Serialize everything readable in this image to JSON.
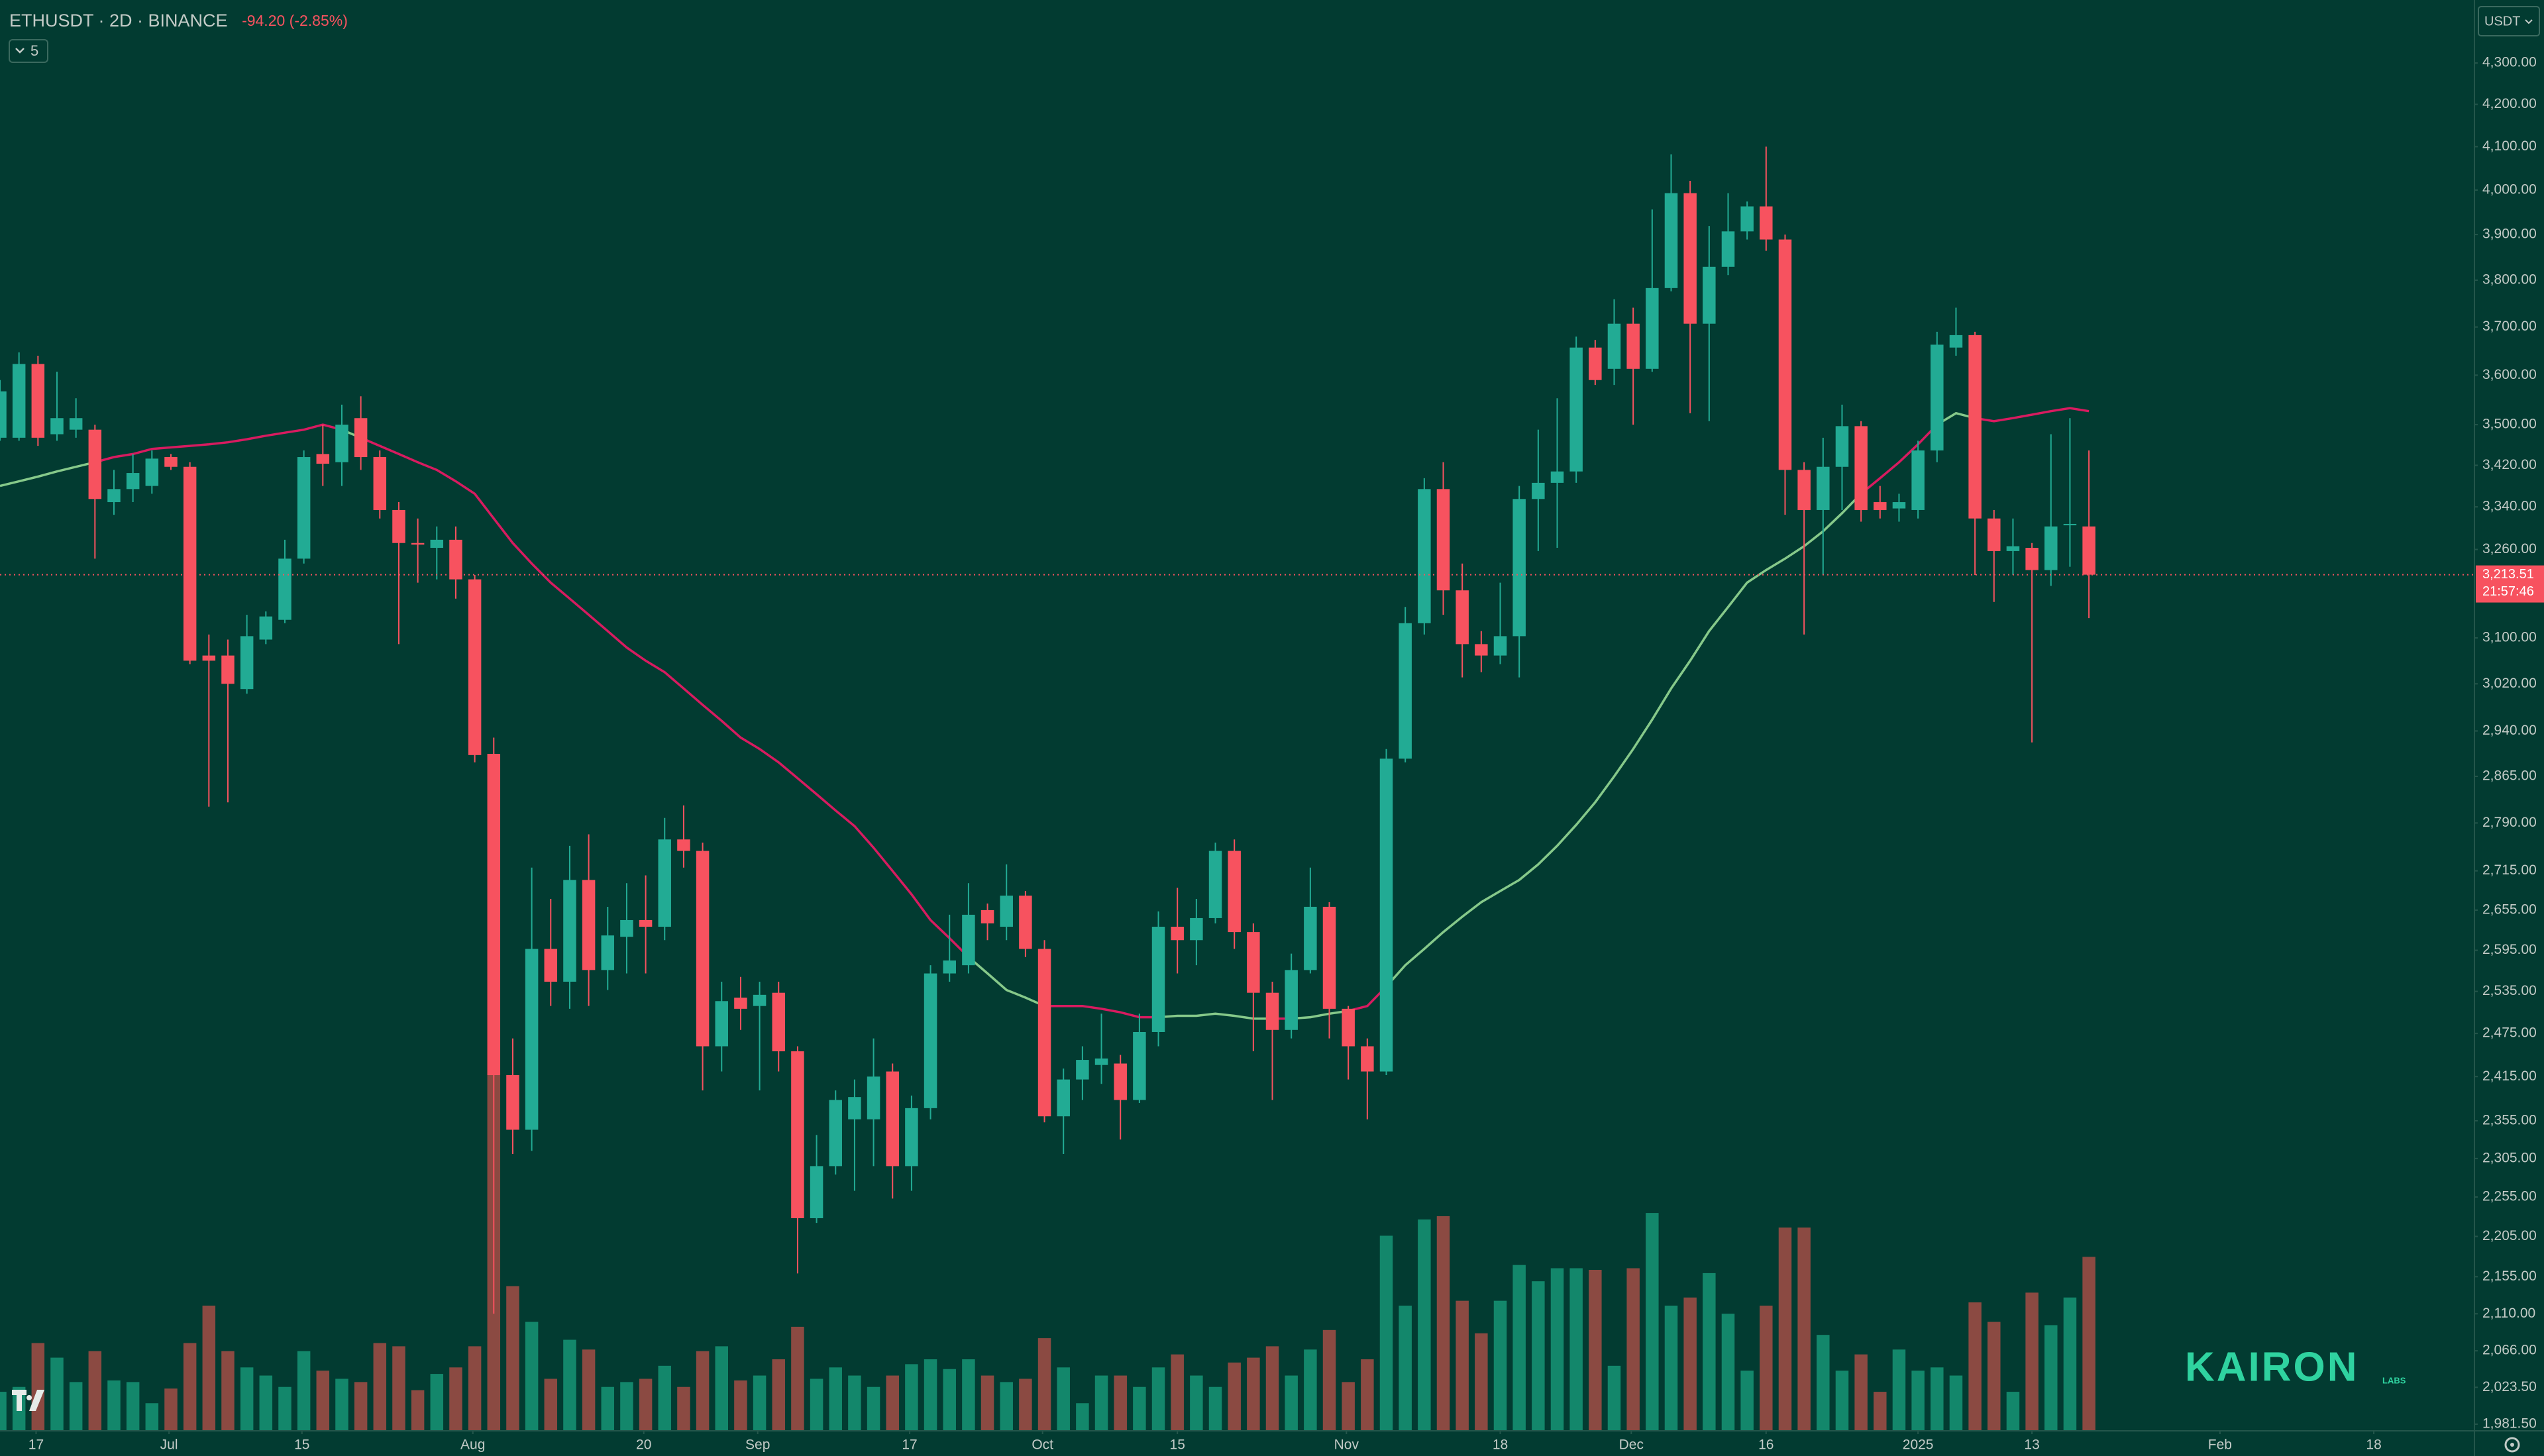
{
  "header": {
    "symbol": "ETHUSDT · 2D · BINANCE",
    "change": "-94.20 (-2.85%)",
    "indicators": "5"
  },
  "currency": "USDT",
  "watermark": {
    "brand": "KAIRON",
    "sub": "LABS"
  },
  "chart_data": {
    "type": "candlestick",
    "open": [
      3474,
      3474,
      3623,
      3481,
      3490,
      3490,
      3349,
      3374,
      3380,
      3436,
      3417,
      3069,
      3069,
      3011,
      3097,
      3132,
      3243,
      3442,
      3426,
      3513,
      3436,
      3334,
      3272,
      3263,
      3278,
      3205,
      2902,
      2417,
      2343,
      2597,
      2549,
      2701,
      2566,
      2615,
      2640,
      2630,
      2764,
      2746,
      2457,
      2526,
      2514,
      2533,
      2450,
      2228,
      2295,
      2357,
      2357,
      2422,
      2295,
      2372,
      2561,
      2573,
      2655,
      2630,
      2677,
      2597,
      2361,
      2411,
      2431,
      2433,
      2383,
      2477,
      2630,
      2610,
      2643,
      2746,
      2622,
      2533,
      2480,
      2566,
      2660,
      2510,
      2457,
      2422,
      2894,
      3126,
      3374,
      3185,
      3089,
      3069,
      3103,
      3355,
      3386,
      3408,
      3657,
      3613,
      3707,
      3613,
      3783,
      3993,
      3707,
      3829,
      3907,
      3963,
      3889,
      3411,
      3334,
      3417,
      3497,
      3349,
      3337,
      3334,
      3449,
      3657,
      3683,
      3318,
      3257,
      3263,
      3222,
      3306,
      3303
    ],
    "high": [
      3590,
      3647,
      3640,
      3607,
      3553,
      3500,
      3411,
      3442,
      3449,
      3442,
      3426,
      3106,
      3097,
      3141,
      3147,
      3278,
      3449,
      3500,
      3540,
      3557,
      3449,
      3349,
      3318,
      3303,
      3303,
      3213,
      2929,
      2468,
      2720,
      2672,
      2754,
      2772,
      2660,
      2696,
      2708,
      2798,
      2818,
      2759,
      2549,
      2556,
      2549,
      2549,
      2457,
      2336,
      2396,
      2411,
      2468,
      2433,
      2389,
      2573,
      2648,
      2696,
      2665,
      2725,
      2684,
      2610,
      2426,
      2457,
      2503,
      2445,
      2503,
      2653,
      2689,
      2672,
      2759,
      2764,
      2635,
      2549,
      2590,
      2720,
      2667,
      2514,
      2468,
      2910,
      3155,
      3395,
      3426,
      3234,
      3112,
      3199,
      3380,
      3490,
      3553,
      3680,
      3673,
      3759,
      3741,
      3956,
      4082,
      4021,
      3919,
      3993,
      3974,
      4100,
      3900,
      3426,
      3474,
      3540,
      3507,
      3380,
      3365,
      3468,
      3690,
      3741,
      3690,
      3334,
      3318,
      3272,
      3481,
      3513,
      3449
    ],
    "low": [
      3468,
      3468,
      3458,
      3468,
      3474,
      3243,
      3325,
      3349,
      3365,
      3411,
      3054,
      2816,
      2823,
      3003,
      3089,
      3126,
      3234,
      3380,
      3380,
      3411,
      3318,
      3089,
      3199,
      3205,
      3170,
      2888,
      2110,
      2311,
      2315,
      2514,
      2510,
      2514,
      2537,
      2561,
      2561,
      2610,
      2720,
      2396,
      2422,
      2480,
      2396,
      2422,
      2159,
      2222,
      2284,
      2263,
      2295,
      2253,
      2263,
      2357,
      2549,
      2561,
      2610,
      2610,
      2585,
      2353,
      2311,
      2383,
      2405,
      2330,
      2379,
      2457,
      2561,
      2573,
      2635,
      2597,
      2450,
      2383,
      2468,
      2561,
      2468,
      2411,
      2357,
      2417,
      2888,
      3106,
      3141,
      3031,
      3040,
      3054,
      3031,
      3257,
      3263,
      3386,
      3580,
      3580,
      3500,
      3607,
      3776,
      3523,
      3507,
      3811,
      3889,
      3864,
      3325,
      3106,
      3213,
      3334,
      3312,
      3318,
      3312,
      3318,
      3426,
      3640,
      3213,
      3164,
      3213,
      2921,
      3193,
      3228,
      3135
    ],
    "close": [
      3567,
      3623,
      3474,
      3513,
      3513,
      3355,
      3374,
      3405,
      3433,
      3417,
      3060,
      3060,
      3020,
      3103,
      3138,
      3243,
      3436,
      3423,
      3500,
      3436,
      3334,
      3272,
      3269,
      3278,
      3205,
      2900,
      2417,
      2343,
      2597,
      2549,
      2701,
      2566,
      2617,
      2640,
      2630,
      2764,
      2746,
      2457,
      2521,
      2510,
      2530,
      2450,
      2228,
      2295,
      2383,
      2387,
      2415,
      2295,
      2372,
      2561,
      2580,
      2648,
      2635,
      2677,
      2597,
      2361,
      2411,
      2438,
      2440,
      2383,
      2477,
      2630,
      2610,
      2643,
      2746,
      2622,
      2533,
      2480,
      2566,
      2660,
      2510,
      2457,
      2422,
      2894,
      3126,
      3374,
      3185,
      3089,
      3069,
      3103,
      3355,
      3386,
      3408,
      3657,
      3590,
      3707,
      3613,
      3783,
      3993,
      3707,
      3829,
      3907,
      3963,
      3889,
      3411,
      3334,
      3417,
      3497,
      3334,
      3334,
      3349,
      3449,
      3663,
      3683,
      3318,
      3257,
      3266,
      3222,
      3303,
      3307.71,
      3213.51
    ],
    "volume": [
      24,
      27,
      54,
      45,
      30,
      49,
      31,
      30,
      17,
      26,
      54,
      77,
      49,
      39,
      34,
      27,
      49,
      37,
      32,
      30,
      54,
      52,
      25,
      35,
      39,
      52,
      220,
      89,
      67,
      32,
      56,
      50,
      27,
      30,
      32,
      40,
      27,
      49,
      52,
      31,
      34,
      44,
      64,
      32,
      39,
      34,
      27,
      34,
      41,
      44,
      38,
      44,
      34,
      30,
      32,
      57,
      39,
      17,
      34,
      34,
      27,
      39,
      47,
      34,
      27,
      42,
      45,
      52,
      34,
      50,
      62,
      30,
      44,
      120,
      77,
      130,
      132,
      80,
      60,
      80,
      102,
      92,
      100,
      100,
      99,
      40,
      100,
      134,
      77,
      82,
      97,
      72,
      37,
      77,
      125,
      125,
      59,
      37,
      47,
      24,
      50,
      37,
      39,
      34,
      79,
      67,
      24,
      85,
      65,
      82,
      107
    ],
    "ma": [
      3380,
      3389,
      3398,
      3408,
      3417,
      3426,
      3436,
      3442,
      3452,
      3455,
      3458,
      3461,
      3465,
      3471,
      3478,
      3484,
      3490,
      3500,
      3490,
      3474,
      3458,
      3442,
      3426,
      3411,
      3389,
      3365,
      3318,
      3272,
      3234,
      3199,
      3170,
      3141,
      3112,
      3083,
      3060,
      3040,
      3012,
      2984,
      2957,
      2929,
      2910,
      2888,
      2862,
      2836,
      2810,
      2785,
      2751,
      2715,
      2679,
      2640,
      2613,
      2585,
      2561,
      2537,
      2526,
      2514,
      2514,
      2514,
      2510,
      2505,
      2498,
      2498,
      2500,
      2500,
      2503,
      2500,
      2496,
      2496,
      2496,
      2498,
      2503,
      2507,
      2514,
      2542,
      2573,
      2597,
      2622,
      2645,
      2667,
      2684,
      2701,
      2725,
      2754,
      2787,
      2823,
      2865,
      2910,
      2959,
      3012,
      3060,
      3112,
      3155,
      3199,
      3222,
      3243,
      3266,
      3294,
      3328,
      3365,
      3395,
      3426,
      3461,
      3500,
      3523,
      3513,
      3507,
      3513,
      3520,
      3527,
      3533,
      3527
    ],
    "last_price": 3213.51,
    "last_price_label": "3,213.51",
    "countdown": "21:57:46",
    "xlim": [
      0,
      130.3
    ],
    "xticks": [
      {
        "value": 1.9,
        "label": "17"
      },
      {
        "value": 8.9,
        "label": "Jul"
      },
      {
        "value": 15.9,
        "label": "15"
      },
      {
        "value": 24.9,
        "label": "Aug"
      },
      {
        "value": 33.9,
        "label": "20"
      },
      {
        "value": 39.9,
        "label": "Sep"
      },
      {
        "value": 47.9,
        "label": "17"
      },
      {
        "value": 54.9,
        "label": "Oct"
      },
      {
        "value": 62.0,
        "label": "15"
      },
      {
        "value": 70.9,
        "label": "Nov"
      },
      {
        "value": 79.0,
        "label": "18"
      },
      {
        "value": 85.9,
        "label": "Dec"
      },
      {
        "value": 93.0,
        "label": "16"
      },
      {
        "value": 101.0,
        "label": "2025"
      },
      {
        "value": 107.0,
        "label": "13"
      },
      {
        "value": 116.9,
        "label": "Feb"
      },
      {
        "value": 125.0,
        "label": "18"
      }
    ],
    "ylim": [
      1974,
      4457
    ],
    "log_y": true,
    "grid": false,
    "yticks": [
      {
        "value": 4300,
        "label": "4,300.00"
      },
      {
        "value": 4200,
        "label": "4,200.00"
      },
      {
        "value": 4100,
        "label": "4,100.00"
      },
      {
        "value": 4000,
        "label": "4,000.00"
      },
      {
        "value": 3900,
        "label": "3,900.00"
      },
      {
        "value": 3800,
        "label": "3,800.00"
      },
      {
        "value": 3700,
        "label": "3,700.00"
      },
      {
        "value": 3600,
        "label": "3,600.00"
      },
      {
        "value": 3500,
        "label": "3,500.00"
      },
      {
        "value": 3420,
        "label": "3,420.00"
      },
      {
        "value": 3340,
        "label": "3,340.00"
      },
      {
        "value": 3260,
        "label": "3,260.00"
      },
      {
        "value": 3100,
        "label": "3,100.00"
      },
      {
        "value": 3020,
        "label": "3,020.00"
      },
      {
        "value": 2940,
        "label": "2,940.00"
      },
      {
        "value": 2865,
        "label": "2,865.00"
      },
      {
        "value": 2790,
        "label": "2,790.00"
      },
      {
        "value": 2715,
        "label": "2,715.00"
      },
      {
        "value": 2655,
        "label": "2,655.00"
      },
      {
        "value": 2595,
        "label": "2,595.00"
      },
      {
        "value": 2535,
        "label": "2,535.00"
      },
      {
        "value": 2475,
        "label": "2,475.00"
      },
      {
        "value": 2415,
        "label": "2,415.00"
      },
      {
        "value": 2355,
        "label": "2,355.00"
      },
      {
        "value": 2305,
        "label": "2,305.00"
      },
      {
        "value": 2255,
        "label": "2,255.00"
      },
      {
        "value": 2205,
        "label": "2,205.00"
      },
      {
        "value": 2155,
        "label": "2,155.00"
      },
      {
        "value": 2110,
        "label": "2,110.00"
      },
      {
        "value": 2066,
        "label": "2,066.00"
      },
      {
        "value": 2023.5,
        "label": "2,023.50"
      },
      {
        "value": 1981.5,
        "label": "1,981.50"
      }
    ],
    "up_color": "#22ab94",
    "down_color": "#f7525f",
    "volume_up_color": "#13876b",
    "volume_down_color": "#8b4a42",
    "ma_up_color": "#86c98a",
    "ma_down_color": "#d81b60",
    "background": "#023b31"
  }
}
